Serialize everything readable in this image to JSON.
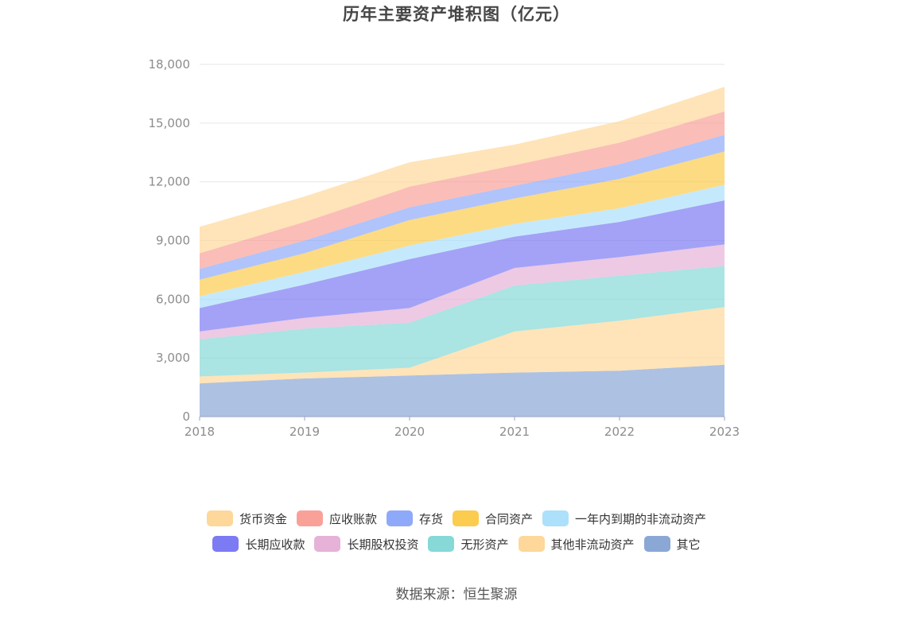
{
  "title": "历年主要资产堆积图（亿元）",
  "source": "数据来源：恒生聚源",
  "colors": {
    "axis": "#c8c8c8",
    "grid": "#e6e6e6",
    "tick": "#8c8c8c"
  },
  "chart_data": {
    "type": "area",
    "stacked": true,
    "title": "历年主要资产堆积图（亿元）",
    "x": [
      "2018",
      "2019",
      "2020",
      "2021",
      "2022",
      "2023"
    ],
    "ylim": [
      0,
      18000
    ],
    "yticks": [
      0,
      3000,
      6000,
      9000,
      12000,
      15000,
      18000
    ],
    "ytick_labels": [
      "0",
      "3,000",
      "6,000",
      "9,000",
      "12,000",
      "15,000",
      "18,000"
    ],
    "grid": true,
    "legend_position": "bottom",
    "series": [
      {
        "name": "其它",
        "color": "#8aa7d6",
        "values": [
          1700,
          1950,
          2100,
          2250,
          2350,
          2650
        ]
      },
      {
        "name": "其他非流动资产",
        "color": "#fdd89a",
        "values": [
          350,
          300,
          400,
          2100,
          2550,
          2950
        ]
      },
      {
        "name": "无形资产",
        "color": "#86d9d7",
        "values": [
          1900,
          2250,
          2300,
          2350,
          2300,
          2100
        ]
      },
      {
        "name": "长期股权投资",
        "color": "#e6b2d8",
        "values": [
          400,
          550,
          750,
          900,
          950,
          1100
        ]
      },
      {
        "name": "长期应收款",
        "color": "#7c7bf4",
        "values": [
          1200,
          1700,
          2500,
          1600,
          1800,
          2250
        ]
      },
      {
        "name": "一年内到期的非流动资产",
        "color": "#ade0fb",
        "values": [
          600,
          650,
          700,
          650,
          700,
          800
        ]
      },
      {
        "name": "合同资产",
        "color": "#fccc4e",
        "values": [
          850,
          950,
          1300,
          1300,
          1500,
          1700
        ]
      },
      {
        "name": "存货",
        "color": "#8fa9fa",
        "values": [
          550,
          650,
          650,
          650,
          750,
          850
        ]
      },
      {
        "name": "应收账款",
        "color": "#f9a199",
        "values": [
          800,
          950,
          1050,
          1050,
          1100,
          1200
        ]
      },
      {
        "name": "货币资金",
        "color": "#fdd89a",
        "values": [
          1350,
          1300,
          1250,
          1050,
          1100,
          1250
        ]
      }
    ]
  },
  "legend": {
    "row1": [
      {
        "label": "货币资金",
        "color": "#fdd89a"
      },
      {
        "label": "应收账款",
        "color": "#f9a199"
      },
      {
        "label": "存货",
        "color": "#8fa9fa"
      },
      {
        "label": "合同资产",
        "color": "#fccc4e"
      },
      {
        "label": "一年内到期的非流动资产",
        "color": "#ade0fb"
      }
    ],
    "row2": [
      {
        "label": "长期应收款",
        "color": "#7c7bf4"
      },
      {
        "label": "长期股权投资",
        "color": "#e6b2d8"
      },
      {
        "label": "无形资产",
        "color": "#86d9d7"
      },
      {
        "label": "其他非流动资产",
        "color": "#fdd89a"
      },
      {
        "label": "其它",
        "color": "#8aa7d6"
      }
    ]
  }
}
